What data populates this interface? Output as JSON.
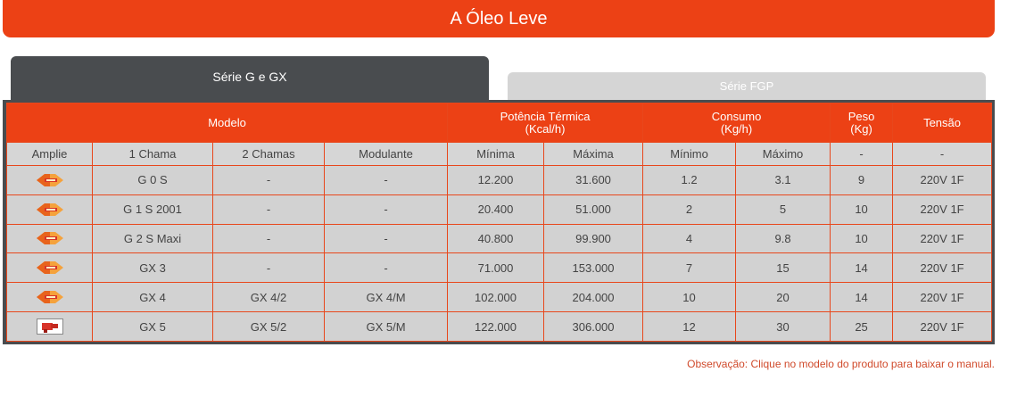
{
  "banner": {
    "title": "A Óleo Leve"
  },
  "tabs": {
    "active": "Série G e GX",
    "inactive": "Série FGP"
  },
  "header": {
    "modelo": "Modelo",
    "potencia": "Potência Térmica",
    "potencia_unit": "(Kcal/h)",
    "consumo": "Consumo",
    "consumo_unit": "(Kg/h)",
    "peso": "Peso",
    "peso_unit": "(Kg)",
    "tensao": "Tensão"
  },
  "subheader": [
    "Amplie",
    "1 Chama",
    "2 Chamas",
    "Modulante",
    "Mínima",
    "Máxima",
    "Mínimo",
    "Máximo",
    "-",
    "-"
  ],
  "rows": [
    {
      "icon": "burner-g-icon",
      "c1": "G 0 S",
      "c2": "-",
      "mod": "-",
      "pmin": "12.200",
      "pmax": "31.600",
      "cmin": "1.2",
      "cmax": "3.1",
      "peso": "9",
      "tensao": "220V 1F"
    },
    {
      "icon": "burner-g-icon",
      "c1": "G 1 S 2001",
      "c2": "-",
      "mod": "-",
      "pmin": "20.400",
      "pmax": "51.000",
      "cmin": "2",
      "cmax": "5",
      "peso": "10",
      "tensao": "220V 1F"
    },
    {
      "icon": "burner-g-icon",
      "c1": "G 2 S Maxi",
      "c2": "-",
      "mod": "-",
      "pmin": "40.800",
      "pmax": "99.900",
      "cmin": "4",
      "cmax": "9.8",
      "peso": "10",
      "tensao": "220V 1F"
    },
    {
      "icon": "burner-g-icon",
      "c1": "GX 3",
      "c2": "-",
      "mod": "-",
      "pmin": "71.000",
      "pmax": "153.000",
      "cmin": "7",
      "cmax": "15",
      "peso": "14",
      "tensao": "220V 1F"
    },
    {
      "icon": "burner-g-icon",
      "c1": "GX 4",
      "c2": "GX 4/2",
      "mod": "GX 4/M",
      "pmin": "102.000",
      "pmax": "204.000",
      "cmin": "10",
      "cmax": "20",
      "peso": "14",
      "tensao": "220V 1F"
    },
    {
      "icon": "burner-gx-icon",
      "c1": "GX 5",
      "c2": "GX 5/2",
      "mod": "GX 5/M",
      "pmin": "122.000",
      "pmax": "306.000",
      "cmin": "12",
      "cmax": "30",
      "peso": "25",
      "tensao": "220V 1F"
    }
  ],
  "note": "Observação: Clique no modelo do produto para baixar o manual.",
  "colors": {
    "accent": "#ec4115",
    "tab_active": "#494c4f",
    "tab_inactive": "#d5d5d5",
    "cell": "#d2d2d2"
  }
}
